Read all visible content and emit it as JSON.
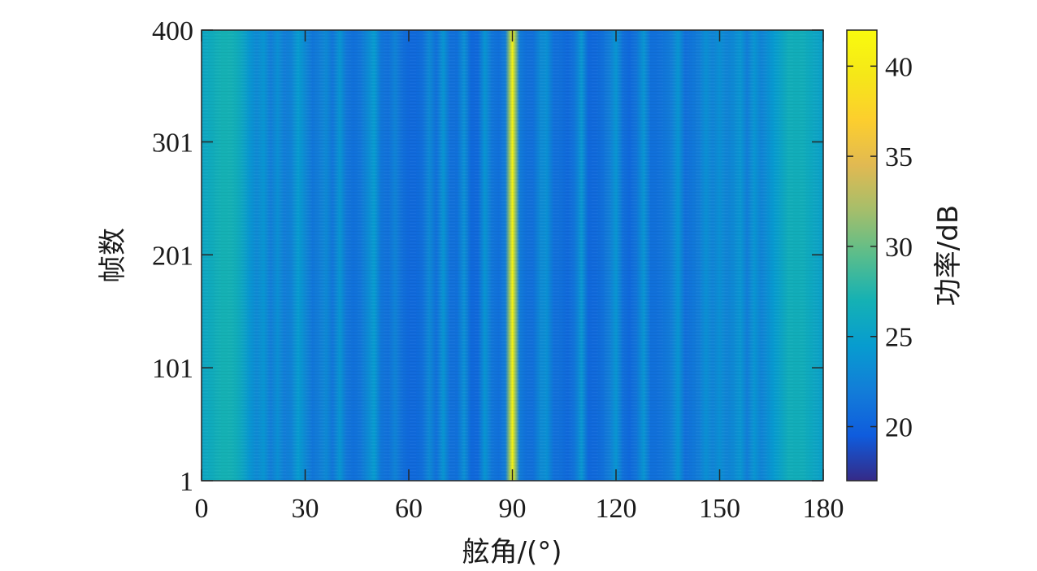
{
  "chart_data": {
    "type": "heatmap",
    "title": "",
    "xlabel": "舷角/(°)",
    "ylabel": "帧数",
    "colorbar_label": "功率/dB",
    "xlim": [
      0,
      180
    ],
    "ylim": [
      1,
      400
    ],
    "x_ticks": [
      0,
      30,
      60,
      90,
      120,
      150,
      180
    ],
    "x_tick_labels": [
      "0",
      "30",
      "60",
      "90",
      "120",
      "150",
      "180"
    ],
    "y_ticks": [
      1,
      101,
      201,
      301,
      400
    ],
    "y_tick_labels": [
      "1",
      "101",
      "201",
      "301",
      "400"
    ],
    "color_range": [
      17,
      42
    ],
    "colorbar_ticks": [
      20,
      25,
      30,
      35,
      40
    ],
    "colorbar_tick_labels": [
      "20",
      "25",
      "30",
      "35",
      "40"
    ],
    "colormap": "parula",
    "profile": {
      "angle_deg": [
        0,
        2,
        4,
        6,
        8,
        10,
        12,
        14,
        16,
        18,
        20,
        22,
        24,
        26,
        28,
        30,
        32,
        34,
        36,
        38,
        40,
        42,
        44,
        46,
        48,
        50,
        52,
        54,
        56,
        58,
        60,
        62,
        64,
        66,
        68,
        70,
        72,
        74,
        76,
        78,
        80,
        82,
        84,
        86,
        88,
        90,
        92,
        94,
        96,
        98,
        100,
        102,
        104,
        106,
        108,
        110,
        112,
        114,
        116,
        118,
        120,
        122,
        124,
        126,
        128,
        130,
        132,
        134,
        136,
        138,
        140,
        142,
        144,
        146,
        148,
        150,
        152,
        154,
        156,
        158,
        160,
        162,
        164,
        166,
        168,
        170,
        172,
        174,
        176,
        178,
        180
      ],
      "power_db": [
        25.5,
        26,
        26.5,
        27,
        27,
        26.5,
        25.5,
        24,
        23,
        24,
        22,
        23.5,
        22,
        22.5,
        24.5,
        23,
        21.5,
        22,
        23,
        21.5,
        24,
        21.5,
        21,
        21.5,
        23,
        24.5,
        21.5,
        21,
        22.5,
        21,
        20.5,
        20.5,
        21,
        23,
        21,
        24,
        21,
        21,
        23.5,
        20.5,
        20.5,
        24,
        21.5,
        21,
        22,
        41,
        22,
        21,
        21,
        23,
        23.5,
        21,
        21,
        20.5,
        21.5,
        24,
        20.5,
        20.5,
        21,
        22,
        24,
        21,
        20.5,
        21.5,
        24,
        21,
        21,
        21.5,
        22,
        24,
        21,
        21.5,
        22,
        23.5,
        22.5,
        23.5,
        22.5,
        23,
        24,
        22,
        24,
        22.5,
        23.5,
        24.5,
        25.5,
        26.5,
        26.5,
        26.5,
        26,
        25.5,
        25
      ]
    }
  }
}
